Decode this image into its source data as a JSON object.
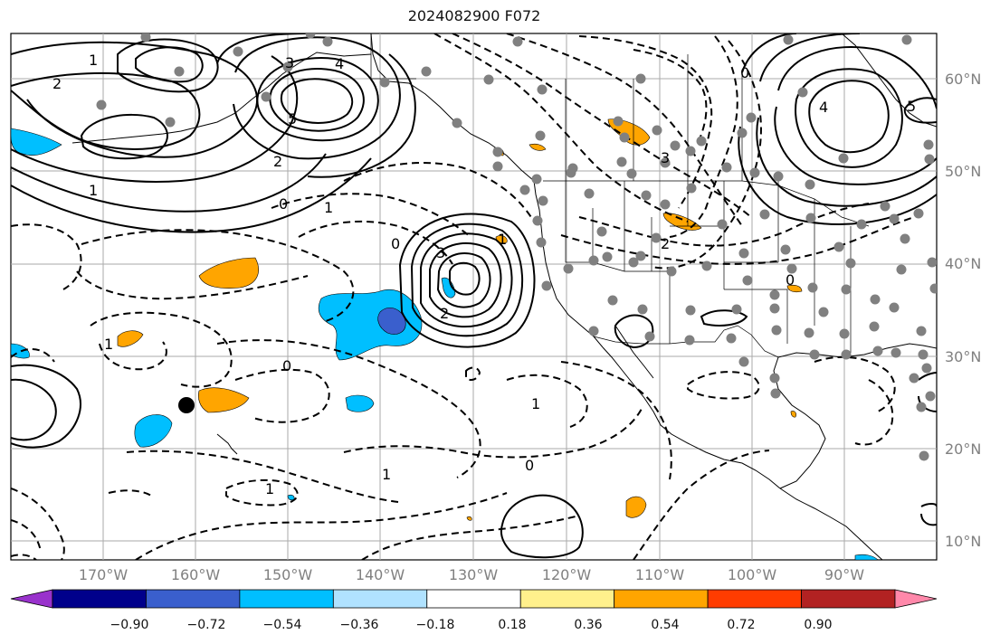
{
  "title": "2024082900 F072",
  "lat_labels": [
    "60°N",
    "50°N",
    "40°N",
    "30°N",
    "20°N",
    "10°N"
  ],
  "lon_labels": [
    "170°W",
    "160°W",
    "150°W",
    "140°W",
    "130°W",
    "120°W",
    "110°W",
    "100°W",
    "90°W"
  ],
  "colorbar": {
    "colors": [
      "#9932cc",
      "#00008b",
      "#3a5fcd",
      "#00bfff",
      "#b0e2ff",
      "#ffffff",
      "#fff08c",
      "#ffa500",
      "#ff3c00",
      "#b22222",
      "#ff88aa"
    ],
    "labels": [
      "−0.90",
      "−0.72",
      "−0.54",
      "−0.36",
      "−0.18",
      "0.18",
      "0.36",
      "0.54",
      "0.72",
      "0.90"
    ]
  },
  "contour_labels": [
    "1",
    "2",
    "3",
    "4",
    "5",
    "2",
    "1",
    "0",
    "0",
    "1",
    "3",
    "2",
    "1",
    "0",
    "1",
    "1",
    "0",
    "1",
    "2",
    "3",
    "4",
    "5",
    "0",
    "0",
    "1"
  ]
}
